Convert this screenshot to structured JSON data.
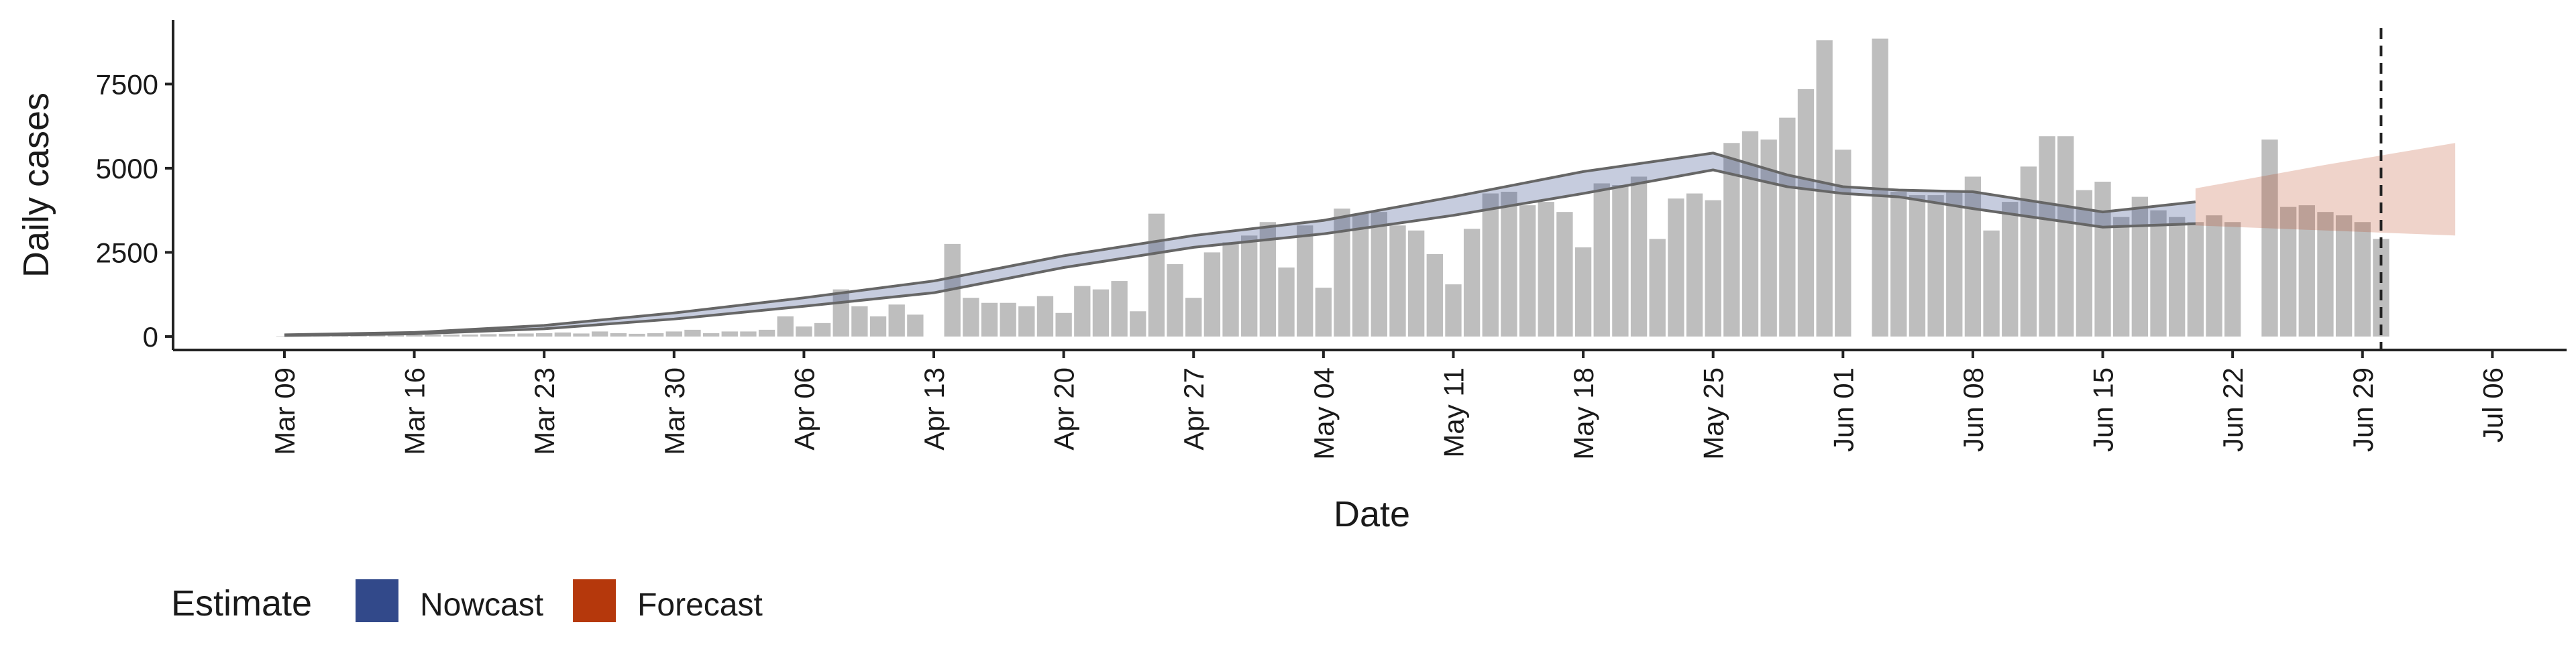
{
  "chart_data": {
    "type": "bar",
    "x_label": "Date",
    "y_label": "Daily cases",
    "bar_color": "#bebebe",
    "xlim": [
      "Mar 03",
      "Jul 10"
    ],
    "xticks": [
      "Mar 09",
      "Mar 16",
      "Mar 23",
      "Mar 30",
      "Apr 06",
      "Apr 13",
      "Apr 20",
      "Apr 27",
      "May 04",
      "May 11",
      "May 18",
      "May 25",
      "Jun 01",
      "Jun 08",
      "Jun 15",
      "Jun 22",
      "Jun 29",
      "Jul 06"
    ],
    "ylim": [
      -400,
      9400
    ],
    "yticks": [
      0,
      2500,
      5000,
      7500
    ],
    "x": [
      "Mar 09",
      "Mar 10",
      "Mar 11",
      "Mar 12",
      "Mar 13",
      "Mar 14",
      "Mar 15",
      "Mar 16",
      "Mar 17",
      "Mar 18",
      "Mar 19",
      "Mar 20",
      "Mar 21",
      "Mar 22",
      "Mar 23",
      "Mar 24",
      "Mar 25",
      "Mar 26",
      "Mar 27",
      "Mar 28",
      "Mar 29",
      "Mar 30",
      "Mar 31",
      "Apr 01",
      "Apr 02",
      "Apr 03",
      "Apr 04",
      "Apr 05",
      "Apr 06",
      "Apr 07",
      "Apr 08",
      "Apr 09",
      "Apr 10",
      "Apr 11",
      "Apr 12",
      "Apr 14",
      "Apr 15",
      "Apr 16",
      "Apr 17",
      "Apr 18",
      "Apr 19",
      "Apr 20",
      "Apr 21",
      "Apr 22",
      "Apr 23",
      "Apr 24",
      "Apr 25",
      "Apr 26",
      "Apr 27",
      "Apr 28",
      "Apr 29",
      "Apr 30",
      "May 01",
      "May 02",
      "May 03",
      "May 04",
      "May 05",
      "May 06",
      "May 07",
      "May 08",
      "May 09",
      "May 10",
      "May 11",
      "May 12",
      "May 13",
      "May 14",
      "May 15",
      "May 16",
      "May 17",
      "May 18",
      "May 19",
      "May 20",
      "May 21",
      "May 22",
      "May 23",
      "May 24",
      "May 25",
      "May 26",
      "May 27",
      "May 28",
      "May 29",
      "May 30",
      "May 31",
      "Jun 01",
      "Jun 03",
      "Jun 04",
      "Jun 05",
      "Jun 06",
      "Jun 07",
      "Jun 08",
      "Jun 09",
      "Jun 10",
      "Jun 11",
      "Jun 12",
      "Jun 13",
      "Jun 14",
      "Jun 15",
      "Jun 16",
      "Jun 17",
      "Jun 18",
      "Jun 19",
      "Jun 20",
      "Jun 21",
      "Jun 22",
      "Jun 24",
      "Jun 25",
      "Jun 26",
      "Jun 27",
      "Jun 28",
      "Jun 29",
      "Jun 30"
    ],
    "values": [
      10,
      10,
      15,
      20,
      25,
      30,
      35,
      40,
      50,
      60,
      60,
      70,
      80,
      90,
      100,
      120,
      90,
      150,
      100,
      80,
      100,
      150,
      200,
      100,
      150,
      150,
      200,
      600,
      300,
      400,
      1400,
      900,
      600,
      950,
      650,
      2750,
      1150,
      1000,
      1000,
      900,
      1200,
      700,
      1500,
      1400,
      1650,
      750,
      3650,
      2150,
      1150,
      2500,
      2800,
      3000,
      3400,
      2050,
      3300,
      1450,
      3800,
      3650,
      3700,
      3300,
      3150,
      2450,
      1550,
      3200,
      4250,
      4300,
      3900,
      4000,
      3700,
      2650,
      4550,
      4500,
      4750,
      2900,
      4100,
      4250,
      4050,
      5750,
      6100,
      5850,
      6500,
      7350,
      8800,
      5550,
      8850,
      4300,
      4200,
      4200,
      4300,
      4750,
      3150,
      4000,
      5050,
      5950,
      5950,
      4350,
      4600,
      3550,
      4150,
      3750,
      3550,
      3400,
      3600,
      3400,
      5850,
      3850,
      3900,
      3700,
      3600,
      3400,
      2900
    ],
    "legend_title": "Estimate",
    "bands": [
      {
        "name": "Nowcast",
        "color": "#32498a",
        "x": [
          "Mar 09",
          "Mar 16",
          "Mar 23",
          "Mar 30",
          "Apr 06",
          "Apr 13",
          "Apr 20",
          "Apr 27",
          "May 04",
          "May 11",
          "May 18",
          "May 25",
          "May 29",
          "Jun 01",
          "Jun 04",
          "Jun 08",
          "Jun 15",
          "Jun 20"
        ],
        "upper": [
          50,
          120,
          330,
          700,
          1150,
          1650,
          2400,
          3000,
          3450,
          4150,
          4900,
          5450,
          4800,
          4450,
          4350,
          4300,
          3700,
          4000
        ],
        "lower": [
          30,
          80,
          230,
          520,
          900,
          1300,
          2050,
          2650,
          3050,
          3600,
          4250,
          4950,
          4450,
          4250,
          4150,
          3800,
          3250,
          3350
        ]
      },
      {
        "name": "Forecast",
        "color": "#b5380c",
        "x": [
          "Jun 20",
          "Jun 27",
          "Jul 04"
        ],
        "upper": [
          4400,
          5100,
          5750
        ],
        "lower": [
          3300,
          3150,
          3000
        ]
      }
    ],
    "vline": "Jun 30"
  }
}
